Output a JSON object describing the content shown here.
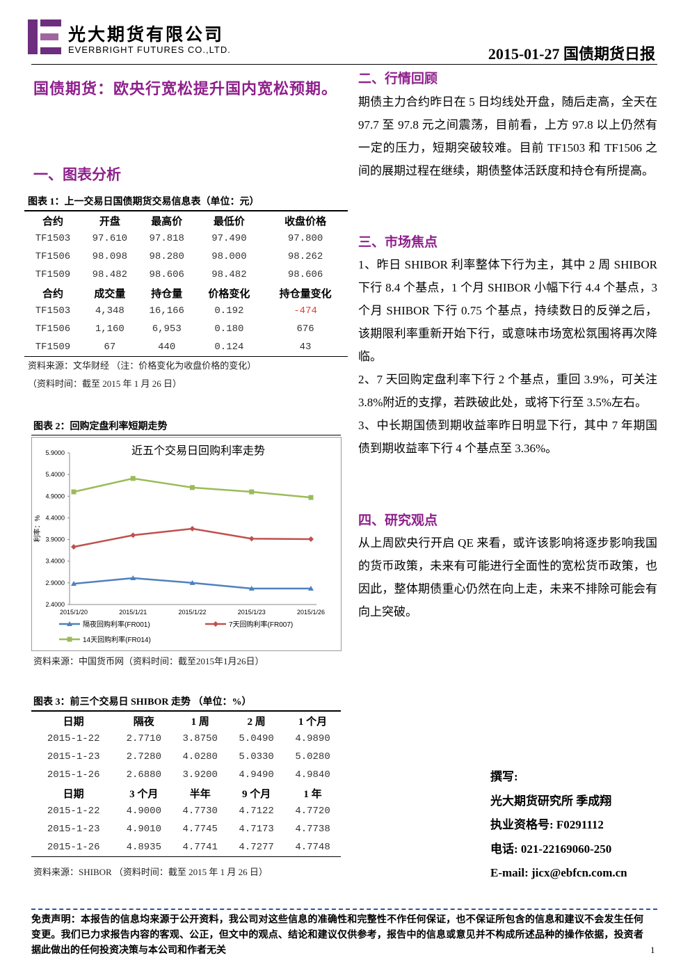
{
  "header": {
    "company_cn": "光大期货有限公司",
    "company_en": "EVERBRIGHT FUTURES CO.,LTD.",
    "report_title": "2015-01-27 国债期货日报"
  },
  "headline": "国债期货：欧央行宽松提升国内宽松预期。",
  "section1_title": "一、图表分析",
  "table1": {
    "caption": "图表 1：上一交易日国债期货交易信息表（单位：元）",
    "header1": [
      "合约",
      "开盘",
      "最高价",
      "最低价",
      "收盘价格"
    ],
    "rows1": [
      [
        "TF1503",
        "97.610",
        "97.818",
        "97.490",
        "97.800"
      ],
      [
        "TF1506",
        "98.098",
        "98.280",
        "98.000",
        "98.262"
      ],
      [
        "TF1509",
        "98.482",
        "98.606",
        "98.482",
        "98.606"
      ]
    ],
    "header2": [
      "合约",
      "成交量",
      "持仓量",
      "价格变化",
      "持仓量变化"
    ],
    "rows2": [
      [
        "TF1503",
        "4,348",
        "16,166",
        "0.192",
        "-474"
      ],
      [
        "TF1506",
        "1,160",
        "6,953",
        "0.180",
        "676"
      ],
      [
        "TF1509",
        "67",
        "440",
        "0.124",
        "43"
      ]
    ],
    "source": "资料来源：文华财经 （注：价格变化为收盘价格的变化）",
    "time": "（资料时间：截至 2015 年 1 月 26 日）"
  },
  "chart2": {
    "caption": "图表 2：回购定盘利率短期走势",
    "source": "资料来源：中国货币网（资料时间：截至2015年1月26日）"
  },
  "chart_data": {
    "type": "line",
    "title": "近五个交易日回购利率走势",
    "y_label": "利率：%",
    "categories": [
      "2015/1/20",
      "2015/1/21",
      "2015/1/22",
      "2015/1/23",
      "2015/1/26"
    ],
    "ylim": [
      2.4,
      5.9
    ],
    "yticks": [
      {
        "value": 2.4,
        "label": "2.4000"
      },
      {
        "value": 2.9,
        "label": "2.9000"
      },
      {
        "value": 3.4,
        "label": "3.4000"
      },
      {
        "value": 3.9,
        "label": "3.9000"
      },
      {
        "value": 4.4,
        "label": "4.4000"
      },
      {
        "value": 4.9,
        "label": "4.9000"
      },
      {
        "value": 5.4,
        "label": "5.4000"
      },
      {
        "value": 5.9,
        "label": "5.9000"
      }
    ],
    "grid": false,
    "series": [
      {
        "name": "隔夜回购利率(FR001)",
        "color": "#4f81bd",
        "marker": "triangle",
        "values": [
          2.88,
          3.01,
          2.9,
          2.77,
          2.77
        ]
      },
      {
        "name": "7天回购利率(FR007)",
        "color": "#c0504d",
        "marker": "diamond",
        "values": [
          3.73,
          4.0,
          4.15,
          3.92,
          3.91
        ]
      },
      {
        "name": "14天回购利率(FR014)",
        "color": "#9bbb59",
        "marker": "square",
        "values": [
          5.0,
          5.31,
          5.1,
          5.0,
          4.87
        ]
      }
    ]
  },
  "table3": {
    "caption": "图表 3：前三个交易日 SHIBOR 走势 （单位：%）",
    "header1": [
      "日期",
      "隔夜",
      "1 周",
      "2 周",
      "1 个月"
    ],
    "rows1": [
      [
        "2015-1-22",
        "2.7710",
        "3.8750",
        "5.0490",
        "4.9890"
      ],
      [
        "2015-1-23",
        "2.7280",
        "4.0280",
        "5.0330",
        "5.0280"
      ],
      [
        "2015-1-26",
        "2.6880",
        "3.9200",
        "4.9490",
        "4.9840"
      ]
    ],
    "header2": [
      "日期",
      "3 个月",
      "半年",
      "9 个月",
      "1 年"
    ],
    "rows2": [
      [
        "2015-1-22",
        "4.9000",
        "4.7730",
        "4.7122",
        "4.7720"
      ],
      [
        "2015-1-23",
        "4.9010",
        "4.7745",
        "4.7173",
        "4.7738"
      ],
      [
        "2015-1-26",
        "4.8935",
        "4.7741",
        "4.7277",
        "4.7748"
      ]
    ],
    "source": "资料来源：SHIBOR （资料时间：截至 2015 年 1 月 26 日）"
  },
  "section2": {
    "title": "二、行情回顾",
    "text": "期债主力合约昨日在 5 日均线处开盘，随后走高，全天在 97.7 至 97.8 元之间震荡，目前看，上方 97.8 以上仍然有一定的压力，短期突破较难。目前 TF1503 和 TF1506 之间的展期过程在继续，期债整体活跃度和持仓有所提高。"
  },
  "section3": {
    "title": "三、市场焦点",
    "items": [
      "1、昨日 SHIBOR 利率整体下行为主，其中 2 周 SHIBOR 下行 8.4 个基点，1 个月 SHIBOR 小幅下行 4.4 个基点，3 个月 SHIBOR 下行 0.75 个基点，持续数日的反弹之后，该期限利率重新开始下行，或意味市场宽松氛围将再次降临。",
      "2、7 天回购定盘利率下行 2 个基点，重回 3.9%，可关注 3.8%附近的支撑，若跌破此处，或将下行至 3.5%左右。",
      "3、中长期国债到期收益率昨日明显下行，其中 7 年期国债到期收益率下行 4 个基点至 3.36%。"
    ]
  },
  "section4": {
    "title": "四、研究观点",
    "text": "从上周欧央行开启 QE 来看，或许该影响将逐步影响我国的货币政策，未来有可能进行全面性的宽松货币政策，也因此，整体期债重心仍然在向上走，未来不排除可能会有向上突破。"
  },
  "author": {
    "label": "撰写:",
    "name": "光大期货研究所 季成翔",
    "license": "执业资格号: F0291112",
    "phone": "电话: 021-22169060-250",
    "email": "E-mail: jicx@ebfcn.com.cn"
  },
  "footer": {
    "disclaimer": "免责声明：本报告的信息均来源于公开资料，我公司对这些信息的准确性和完整性不作任何保证，也不保证所包含的信息和建议不会发生任何变更。我们已力求报告内容的客观、公正，但文中的观点、结论和建议仅供参考，报告中的信息或意见并不构成所述品种的操作依据，投资者据此做出的任何投资决策与本公司和作者无关",
    "page": "1"
  }
}
